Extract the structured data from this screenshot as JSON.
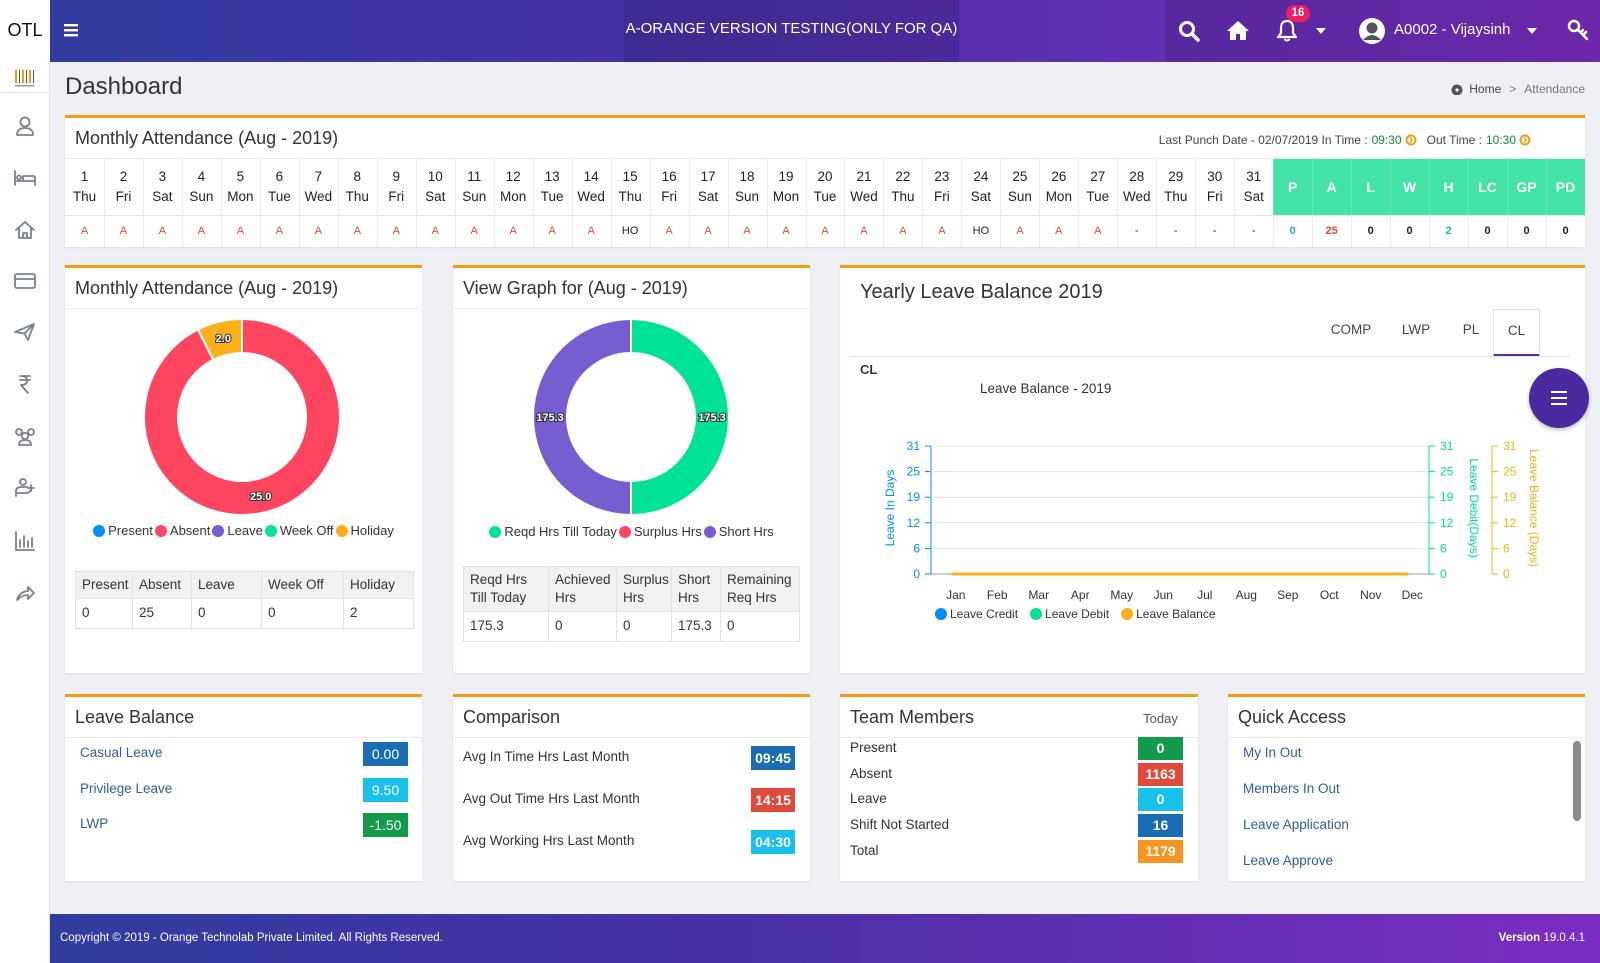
{
  "header": {
    "brand": "OTL",
    "banner": "A-ORANGE VERSION TESTING(ONLY FOR QA)",
    "notifications": "16",
    "user": "A0002 - Vijaysinh"
  },
  "page": {
    "title": "Dashboard",
    "breadcrumb": {
      "home": "Home",
      "separator": ">",
      "current": "Attendance"
    }
  },
  "attendance": {
    "title": "Monthly Attendance (Aug - 2019)",
    "punch_label": "Last Punch Date - 02/07/2019 In Time :",
    "in_time": "09:30",
    "out_label": "Out Time :",
    "out_time": "10:30",
    "days": [
      [
        1,
        "Thu",
        "A"
      ],
      [
        2,
        "Fri",
        "A"
      ],
      [
        3,
        "Sat",
        "A"
      ],
      [
        4,
        "Sun",
        "A"
      ],
      [
        5,
        "Mon",
        "A"
      ],
      [
        6,
        "Tue",
        "A"
      ],
      [
        7,
        "Wed",
        "A"
      ],
      [
        8,
        "Thu",
        "A"
      ],
      [
        9,
        "Fri",
        "A"
      ],
      [
        10,
        "Sat",
        "A"
      ],
      [
        11,
        "Sun",
        "A"
      ],
      [
        12,
        "Mon",
        "A"
      ],
      [
        13,
        "Tue",
        "A"
      ],
      [
        14,
        "Wed",
        "A"
      ],
      [
        15,
        "Thu",
        "HO"
      ],
      [
        16,
        "Fri",
        "A"
      ],
      [
        17,
        "Sat",
        "A"
      ],
      [
        18,
        "Sun",
        "A"
      ],
      [
        19,
        "Mon",
        "A"
      ],
      [
        20,
        "Tue",
        "A"
      ],
      [
        21,
        "Wed",
        "A"
      ],
      [
        22,
        "Thu",
        "A"
      ],
      [
        23,
        "Fri",
        "A"
      ],
      [
        24,
        "Sat",
        "HO"
      ],
      [
        25,
        "Sun",
        "A"
      ],
      [
        26,
        "Mon",
        "A"
      ],
      [
        27,
        "Tue",
        "A"
      ],
      [
        28,
        "Wed",
        "-"
      ],
      [
        29,
        "Thu",
        "-"
      ],
      [
        30,
        "Fri",
        "-"
      ],
      [
        31,
        "Sat",
        "-"
      ]
    ],
    "summary": [
      {
        "label": "P",
        "value": 0,
        "color": "#1abc9c"
      },
      {
        "label": "A",
        "value": 25,
        "color": "#e74c3c"
      },
      {
        "label": "L",
        "value": 0,
        "color": "#222222"
      },
      {
        "label": "W",
        "value": 0,
        "color": "#222222"
      },
      {
        "label": "H",
        "value": 2,
        "color": "#1abc9c"
      },
      {
        "label": "LC",
        "value": 0,
        "color": "#222222"
      },
      {
        "label": "GP",
        "value": 0,
        "color": "#222222"
      },
      {
        "label": "PD",
        "value": 0,
        "color": "#222222"
      }
    ]
  },
  "chart_data": [
    {
      "type": "donut",
      "title": "Monthly Attendance (Aug - 2019)",
      "categories": [
        "Present",
        "Absent",
        "Leave",
        "Week Off",
        "Holiday"
      ],
      "values": [
        0,
        25,
        0,
        0,
        2
      ],
      "value_labels": [
        null,
        "25.0",
        null,
        null,
        "2.0"
      ],
      "colors": [
        "#008ffb",
        "#ff4560",
        "#775dd0",
        "#00e396",
        "#feb019"
      ]
    },
    {
      "type": "donut",
      "title": "View Graph for (Aug - 2019)",
      "categories": [
        "Reqd Hrs Till Today",
        "Surplus Hrs",
        "Short Hrs"
      ],
      "values": [
        175.3,
        0,
        175.3
      ],
      "value_labels": [
        "175.3",
        null,
        "175.3"
      ],
      "colors": [
        "#00e396",
        "#ff4560",
        "#775dd0"
      ]
    },
    {
      "type": "line",
      "subtitle": "CL",
      "title": "Leave Balance - 2019",
      "categories": [
        "Jan",
        "Feb",
        "Mar",
        "Apr",
        "May",
        "Jun",
        "Jul",
        "Aug",
        "Sep",
        "Oct",
        "Nov",
        "Dec"
      ],
      "series": [
        {
          "name": "Leave Credit",
          "color": "#008ffb",
          "axis": "y",
          "values": [
            0,
            0,
            0,
            0,
            0,
            0,
            0,
            0,
            0,
            0,
            0,
            0
          ]
        },
        {
          "name": "Leave Debit",
          "color": "#00e396",
          "axis": "y2",
          "values": [
            0,
            0,
            0,
            0,
            0,
            0,
            0,
            0,
            0,
            0,
            0,
            0
          ]
        },
        {
          "name": "Leave Balance",
          "color": "#feb019",
          "axis": "y3",
          "values": [
            0,
            0,
            0,
            0,
            0,
            0,
            0,
            0,
            0,
            0,
            0,
            0
          ]
        }
      ],
      "ylabel": "Leave In Days",
      "y2label": "Leave Debit(Days)",
      "y3label": "Leave Balance (Days)",
      "ylim": [
        0,
        31
      ],
      "yticks": [
        0,
        {
          "value": 6.2,
          "label": "6"
        },
        {
          "value": 12.4,
          "label": "12"
        },
        {
          "value": 18.6,
          "label": "19"
        },
        {
          "value": 24.8,
          "label": "25"
        },
        31
      ],
      "y2lim": [
        0,
        31
      ],
      "y2ticks": [
        0,
        {
          "value": 6.2,
          "label": "6"
        },
        {
          "value": 12.4,
          "label": "12"
        },
        {
          "value": 18.6,
          "label": "19"
        },
        {
          "value": 24.8,
          "label": "25"
        },
        31
      ],
      "y3lim": [
        0,
        31
      ],
      "y3ticks": [
        0,
        {
          "value": 6.2,
          "label": "6"
        },
        {
          "value": 12.4,
          "label": "12"
        },
        {
          "value": 18.6,
          "label": "19"
        },
        {
          "value": 24.8,
          "label": "25"
        },
        31
      ],
      "grid": true
    }
  ],
  "hours_table": {
    "headers": [
      "Reqd Hrs Till Today",
      "Achieved Hrs",
      "Surplus Hrs",
      "Short Hrs",
      "Remaining Req Hrs"
    ],
    "row": [
      175.3,
      0,
      0,
      175.3,
      0
    ]
  },
  "yearly_card": {
    "title": "Yearly Leave Balance 2019",
    "tabs": [
      "COMP",
      "LWP",
      "PL",
      "CL"
    ]
  },
  "leave_balance": {
    "title": "Leave Balance",
    "items": [
      {
        "label": "Casual Leave",
        "value": "0.00",
        "color": "#1a6db3"
      },
      {
        "label": "Privilege Leave",
        "value": "9.50",
        "color": "#19c0ea"
      },
      {
        "label": "LWP",
        "value": "-1.50",
        "color": "#139a4a"
      }
    ]
  },
  "comparison": {
    "title": "Comparison",
    "items": [
      {
        "label": "Avg In Time Hrs Last Month",
        "value": "09:45",
        "color": "#1a6db3"
      },
      {
        "label": "Avg Out Time Hrs Last Month",
        "value": "14:15",
        "color": "#e04a3a"
      },
      {
        "label": "Avg Working Hrs Last Month",
        "value": "04:30",
        "color": "#19c0ea"
      }
    ]
  },
  "team": {
    "title": "Team Members",
    "period": "Today",
    "items": [
      {
        "label": "Present",
        "value": 0,
        "color": "#139a4a"
      },
      {
        "label": "Absent",
        "value": 1163,
        "color": "#e04a3a"
      },
      {
        "label": "Leave",
        "value": 0,
        "color": "#19c0ea"
      },
      {
        "label": "Shift Not Started",
        "value": 16,
        "color": "#1a6db3"
      },
      {
        "label": "Total",
        "value": 1179,
        "color": "#f7941d"
      }
    ]
  },
  "quick_access": {
    "title": "Quick Access",
    "links": [
      "My In Out",
      "Members In Out",
      "Leave Application",
      "Leave Approve"
    ]
  },
  "footer": {
    "copyright": "Copyright © 2019 - Orange Technolab Private Limited. All Rights Reserved.",
    "version_label": "Version",
    "version": "19.0.4.1"
  }
}
